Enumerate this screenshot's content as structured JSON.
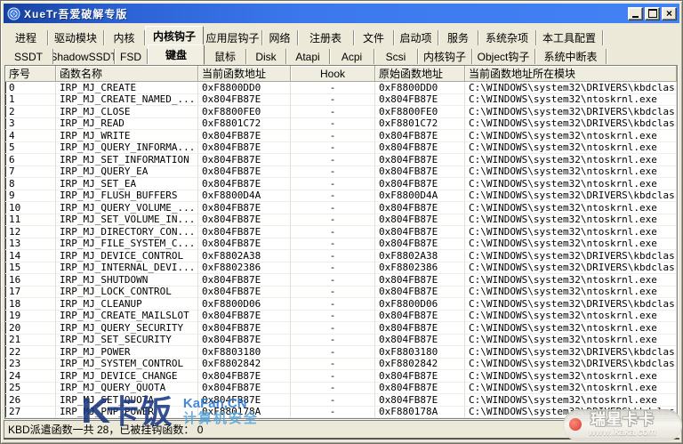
{
  "colors": {
    "titlebar_start": "#16419E",
    "titlebar_end": "#4283F4",
    "window_bg": "#ECE9D8",
    "list_bg": "#FFFFFF",
    "watermark_navy": "#1A3A85",
    "watermark_blue": "#2E7BD6"
  },
  "window": {
    "title": "XueTr吾爱破解专版",
    "controls": {
      "minimize": "最小化",
      "maximize": "最大化",
      "close": "关闭"
    }
  },
  "tabs_main": {
    "selected_index": 3,
    "items": [
      "进程",
      "驱动模块",
      "内核",
      "内核钩子",
      "应用层钩子",
      "网络",
      "注册表",
      "文件",
      "启动项",
      "服务",
      "系统杂项",
      "本工具配置"
    ]
  },
  "tabs_sub": {
    "selected_index": 3,
    "items": [
      "SSDT",
      "ShadowSSDT",
      "FSD",
      "键盘",
      "鼠标",
      "Disk",
      "Atapi",
      "Acpi",
      "Scsi",
      "内核钩子",
      "Object钩子",
      "系统中断表"
    ]
  },
  "table": {
    "columns": [
      "序号",
      "函数名称",
      "当前函数地址",
      "Hook",
      "原始函数地址",
      "当前函数地址所在模块"
    ],
    "rows": [
      [
        "0",
        "IRP_MJ_CREATE",
        "0xF8800DD0",
        "-",
        "0xF8800DD0",
        "C:\\WINDOWS\\system32\\DRIVERS\\kbdclass.sys"
      ],
      [
        "1",
        "IRP_MJ_CREATE_NAMED_...",
        "0x804FB87E",
        "-",
        "0x804FB87E",
        "C:\\WINDOWS\\system32\\ntoskrnl.exe"
      ],
      [
        "2",
        "IRP_MJ_CLOSE",
        "0xF8800FE0",
        "-",
        "0xF8800FE0",
        "C:\\WINDOWS\\system32\\DRIVERS\\kbdclass.sys"
      ],
      [
        "3",
        "IRP_MJ_READ",
        "0xF8801C72",
        "-",
        "0xF8801C72",
        "C:\\WINDOWS\\system32\\DRIVERS\\kbdclass.sys"
      ],
      [
        "4",
        "IRP_MJ_WRITE",
        "0x804FB87E",
        "-",
        "0x804FB87E",
        "C:\\WINDOWS\\system32\\ntoskrnl.exe"
      ],
      [
        "5",
        "IRP_MJ_QUERY_INFORMA...",
        "0x804FB87E",
        "-",
        "0x804FB87E",
        "C:\\WINDOWS\\system32\\ntoskrnl.exe"
      ],
      [
        "6",
        "IRP_MJ_SET_INFORMATION",
        "0x804FB87E",
        "-",
        "0x804FB87E",
        "C:\\WINDOWS\\system32\\ntoskrnl.exe"
      ],
      [
        "7",
        "IRP_MJ_QUERY_EA",
        "0x804FB87E",
        "-",
        "0x804FB87E",
        "C:\\WINDOWS\\system32\\ntoskrnl.exe"
      ],
      [
        "8",
        "IRP_MJ_SET_EA",
        "0x804FB87E",
        "-",
        "0x804FB87E",
        "C:\\WINDOWS\\system32\\ntoskrnl.exe"
      ],
      [
        "9",
        "IRP_MJ_FLUSH_BUFFERS",
        "0xF8800D4A",
        "-",
        "0xF8800D4A",
        "C:\\WINDOWS\\system32\\DRIVERS\\kbdclass.sys"
      ],
      [
        "10",
        "IRP_MJ_QUERY_VOLUME_...",
        "0x804FB87E",
        "-",
        "0x804FB87E",
        "C:\\WINDOWS\\system32\\ntoskrnl.exe"
      ],
      [
        "11",
        "IRP_MJ_SET_VOLUME_IN...",
        "0x804FB87E",
        "-",
        "0x804FB87E",
        "C:\\WINDOWS\\system32\\ntoskrnl.exe"
      ],
      [
        "12",
        "IRP_MJ_DIRECTORY_CON...",
        "0x804FB87E",
        "-",
        "0x804FB87E",
        "C:\\WINDOWS\\system32\\ntoskrnl.exe"
      ],
      [
        "13",
        "IRP_MJ_FILE_SYSTEM_C...",
        "0x804FB87E",
        "-",
        "0x804FB87E",
        "C:\\WINDOWS\\system32\\ntoskrnl.exe"
      ],
      [
        "14",
        "IRP_MJ_DEVICE_CONTROL",
        "0xF8802A38",
        "-",
        "0xF8802A38",
        "C:\\WINDOWS\\system32\\DRIVERS\\kbdclass.sys"
      ],
      [
        "15",
        "IRP_MJ_INTERNAL_DEVI...",
        "0xF8802386",
        "-",
        "0xF8802386",
        "C:\\WINDOWS\\system32\\DRIVERS\\kbdclass.sys"
      ],
      [
        "16",
        "IRP_MJ_SHUTDOWN",
        "0x804FB87E",
        "-",
        "0x804FB87E",
        "C:\\WINDOWS\\system32\\ntoskrnl.exe"
      ],
      [
        "17",
        "IRP_MJ_LOCK_CONTROL",
        "0x804FB87E",
        "-",
        "0x804FB87E",
        "C:\\WINDOWS\\system32\\ntoskrnl.exe"
      ],
      [
        "18",
        "IRP_MJ_CLEANUP",
        "0xF8800D06",
        "-",
        "0xF8800D06",
        "C:\\WINDOWS\\system32\\DRIVERS\\kbdclass.sys"
      ],
      [
        "19",
        "IRP_MJ_CREATE_MAILSLOT",
        "0x804FB87E",
        "-",
        "0x804FB87E",
        "C:\\WINDOWS\\system32\\ntoskrnl.exe"
      ],
      [
        "20",
        "IRP_MJ_QUERY_SECURITY",
        "0x804FB87E",
        "-",
        "0x804FB87E",
        "C:\\WINDOWS\\system32\\ntoskrnl.exe"
      ],
      [
        "21",
        "IRP_MJ_SET_SECURITY",
        "0x804FB87E",
        "-",
        "0x804FB87E",
        "C:\\WINDOWS\\system32\\ntoskrnl.exe"
      ],
      [
        "22",
        "IRP_MJ_POWER",
        "0xF8803180",
        "-",
        "0xF8803180",
        "C:\\WINDOWS\\system32\\DRIVERS\\kbdclass.sys"
      ],
      [
        "23",
        "IRP_MJ_SYSTEM_CONTROL",
        "0xF8802842",
        "-",
        "0xF8802842",
        "C:\\WINDOWS\\system32\\DRIVERS\\kbdclass.sys"
      ],
      [
        "24",
        "IRP_MJ_DEVICE_CHANGE",
        "0x804FB87E",
        "-",
        "0x804FB87E",
        "C:\\WINDOWS\\system32\\ntoskrnl.exe"
      ],
      [
        "25",
        "IRP_MJ_QUERY_QUOTA",
        "0x804FB87E",
        "-",
        "0x804FB87E",
        "C:\\WINDOWS\\system32\\ntoskrnl.exe"
      ],
      [
        "26",
        "IRP_MJ_SET_QUOTA",
        "0x804FB87E",
        "-",
        "0x804FB87E",
        "C:\\WINDOWS\\system32\\ntoskrnl.exe"
      ],
      [
        "27",
        "IRP_MJ_PNP_POWER",
        "0xF880178A",
        "-",
        "0xF880178A",
        "C:\\WINDOWS\\system32\\DRIVERS\\kbdclass.sys"
      ]
    ]
  },
  "status": {
    "text": "KBD派遣函数一共 28，已被挂钩函数： 0"
  },
  "watermarks": {
    "kafan": {
      "logo": "K",
      "name": "卡饭",
      "line1": "KaFan,CN",
      "line2": "计算机安全"
    },
    "ikaka": {
      "name": "瑞星卡卡",
      "url": "www.ikaka.com"
    }
  }
}
